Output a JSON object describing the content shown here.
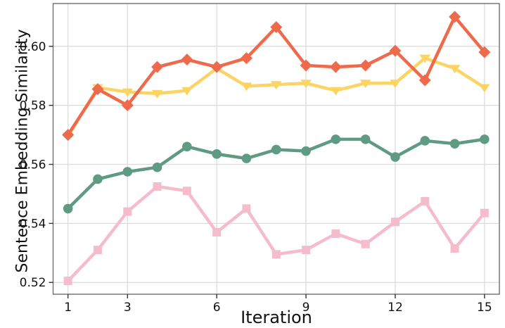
{
  "figure": {
    "background": "#ffffff",
    "grid_color": "#dcdcdc",
    "spine_color": "#6e6e6e",
    "tick_color": "#333333",
    "tick_label_color": "#111111"
  },
  "chart_data": {
    "type": "line",
    "title": "",
    "xlabel": "Iteration",
    "ylabel": "Sentence Embedding Similarity",
    "x": [
      1,
      2,
      3,
      4,
      5,
      6,
      7,
      8,
      9,
      10,
      11,
      12,
      13,
      14,
      15
    ],
    "xtick_positions": [
      1,
      3,
      6,
      9,
      12,
      15
    ],
    "xtick_labels": [
      "1",
      "3",
      "6",
      "9",
      "12",
      "15"
    ],
    "ytick_positions": [
      0.52,
      0.54,
      0.56,
      0.58,
      0.6
    ],
    "ytick_labels": [
      "0.52",
      "0.54",
      "0.56",
      "0.58",
      "0.60"
    ],
    "xlim": [
      0.5,
      15.5
    ],
    "ylim": [
      0.516,
      0.6145
    ],
    "grid": true,
    "legend": "none",
    "series": [
      {
        "name": "pink-squares",
        "marker": "square",
        "color": "#f5bccb",
        "values": [
          0.5205,
          0.531,
          0.544,
          0.5525,
          0.551,
          0.537,
          0.545,
          0.5295,
          0.531,
          0.5365,
          0.533,
          0.5405,
          0.5475,
          0.5315,
          0.5435
        ]
      },
      {
        "name": "green-circles",
        "marker": "circle",
        "color": "#5e9b82",
        "values": [
          0.545,
          0.555,
          0.5575,
          0.559,
          0.566,
          0.5635,
          0.562,
          0.565,
          0.5645,
          0.5685,
          0.5685,
          0.5625,
          0.568,
          0.567,
          0.5685
        ]
      },
      {
        "name": "yellow-triangles",
        "marker": "triangle-down",
        "color": "#fcd463",
        "values": [
          0.5695,
          0.586,
          0.5845,
          0.584,
          0.585,
          0.5925,
          0.5865,
          0.587,
          0.5875,
          0.585,
          0.5875,
          0.5875,
          0.596,
          0.5925,
          0.586
        ]
      },
      {
        "name": "orange-diamonds",
        "marker": "diamond",
        "color": "#ee6a4d",
        "values": [
          0.57,
          0.5855,
          0.58,
          0.593,
          0.5955,
          0.593,
          0.596,
          0.6065,
          0.5935,
          0.593,
          0.5935,
          0.5985,
          0.5885,
          0.61,
          0.598
        ]
      }
    ]
  }
}
